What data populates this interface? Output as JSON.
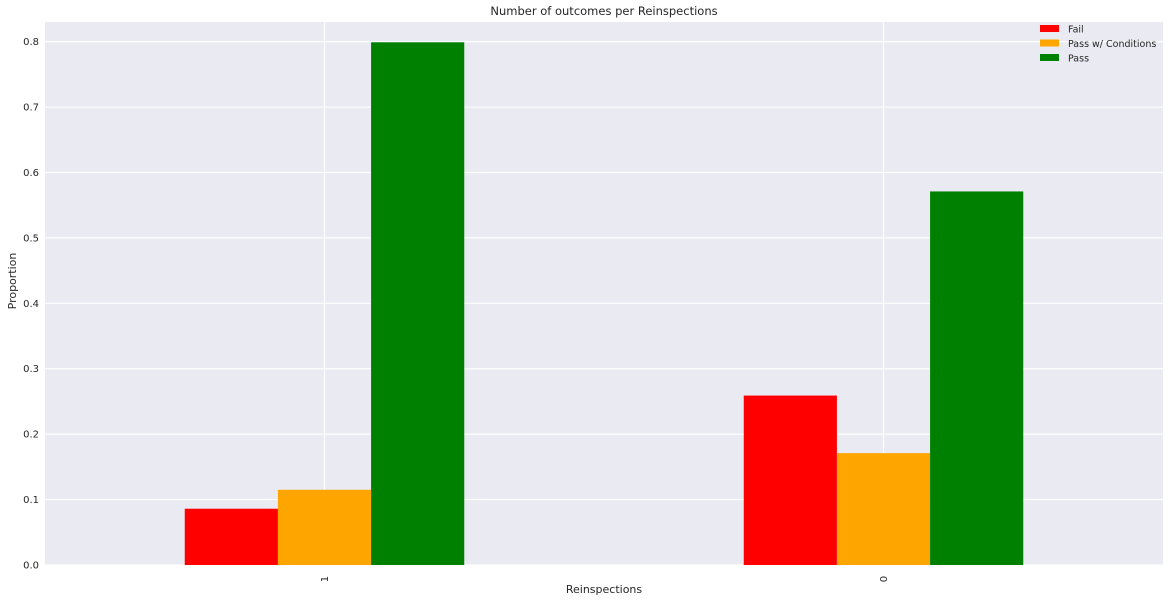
{
  "chart_data": {
    "type": "bar",
    "title": "Number of outcomes per Reinspections",
    "xlabel": "Reinspections",
    "ylabel": "Proportion",
    "categories": [
      "1",
      "0"
    ],
    "series": [
      {
        "name": "Fail",
        "color": "#ff0000",
        "values": [
          0.086,
          0.259
        ]
      },
      {
        "name": "Pass w/ Conditions",
        "color": "#ffa500",
        "values": [
          0.115,
          0.171
        ]
      },
      {
        "name": "Pass",
        "color": "#008000",
        "values": [
          0.799,
          0.571
        ]
      }
    ],
    "ylim": [
      0,
      0.83
    ],
    "yticks": [
      "0.0",
      "0.1",
      "0.2",
      "0.3",
      "0.4",
      "0.5",
      "0.6",
      "0.7",
      "0.8"
    ],
    "grid": true,
    "legend_position": "top-right",
    "background_color": "#eaeaf2",
    "grid_color": "#ffffff"
  }
}
